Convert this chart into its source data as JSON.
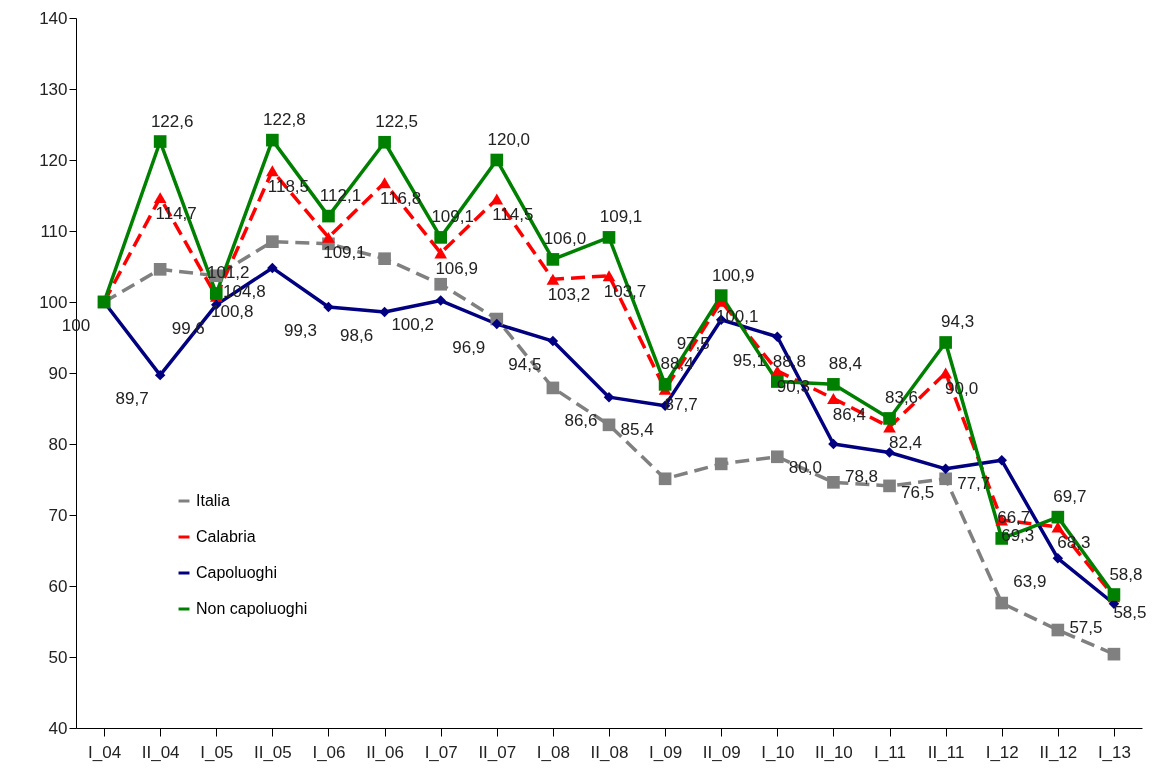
{
  "chart_data": {
    "type": "line",
    "categories": [
      "I_04",
      "II_04",
      "I_05",
      "II_05",
      "I_06",
      "II_06",
      "I_07",
      "II_07",
      "I_08",
      "II_08",
      "I_09",
      "II_09",
      "I_10",
      "II_10",
      "I_11",
      "II_11",
      "I_12",
      "II_12",
      "I_13"
    ],
    "ylim": [
      40,
      140
    ],
    "yticks": [
      40,
      50,
      60,
      70,
      80,
      90,
      100,
      110,
      120,
      130,
      140
    ],
    "grid": false,
    "legend": "bottom left",
    "series": [
      {
        "name": "Italia",
        "color": "#808080",
        "marker": "square",
        "line_style": "dashed",
        "values": [
          100,
          104.6,
          103.7,
          108.5,
          108.2,
          106.1,
          102.5,
          97.6,
          87.9,
          82.7,
          75.1,
          77.2,
          78.2,
          74.6,
          74.1,
          75.1,
          57.6,
          53.8,
          50.4
        ]
      },
      {
        "name": "Calabria",
        "color": "#ff0000",
        "marker": "triangle",
        "line_style": "dashed",
        "values": [
          100,
          114.7,
          100.8,
          118.5,
          109.1,
          116.8,
          106.9,
          114.5,
          103.2,
          103.7,
          87.7,
          100.1,
          90.3,
          86.4,
          82.4,
          90.0,
          69.3,
          68.3,
          58.5
        ],
        "value_labels": [
          null,
          "114,7",
          "100,8",
          "118,5",
          "109,1",
          "116,8",
          "106,9",
          "114,5",
          "103,2",
          "103,7",
          "87,7",
          "100,1",
          "90,3",
          "86,4",
          "82,4",
          "90,0",
          "69,3",
          "68,3",
          "58,5"
        ]
      },
      {
        "name": "Capoluoghi",
        "color": "#000080",
        "marker": "diamond",
        "line_style": "solid",
        "values": [
          100,
          89.7,
          99.6,
          104.8,
          99.3,
          98.6,
          100.2,
          96.9,
          94.5,
          86.6,
          85.4,
          97.5,
          95.1,
          80.0,
          78.8,
          76.5,
          77.7,
          63.9,
          57.5
        ],
        "value_labels": [
          "100",
          "89,7",
          "99,6",
          "104,8",
          "99,3",
          "98,6",
          "100,2",
          "96,9",
          "94,5",
          "86,6",
          "85,4",
          "97,5",
          "95,1",
          "80,0",
          "78,8",
          "76,5",
          "77,7",
          "63,9",
          "57,5"
        ]
      },
      {
        "name": "Non capoluoghi",
        "color": "#008000",
        "marker": "square",
        "line_style": "solid",
        "values": [
          100,
          122.6,
          101.2,
          122.8,
          112.1,
          122.5,
          109.1,
          120.0,
          106.0,
          109.1,
          88.4,
          100.9,
          88.8,
          88.4,
          83.6,
          94.3,
          66.7,
          69.7,
          58.8
        ],
        "value_labels": [
          null,
          "122,6",
          "101,2",
          "122,8",
          "112,1",
          "122,5",
          "109,1",
          "120,0",
          "106,0",
          "109,1",
          "88,4",
          "100,9",
          "88,8",
          "88,4",
          "83,6",
          "94,3",
          "66,7",
          "69,7",
          "58,8"
        ]
      }
    ]
  }
}
